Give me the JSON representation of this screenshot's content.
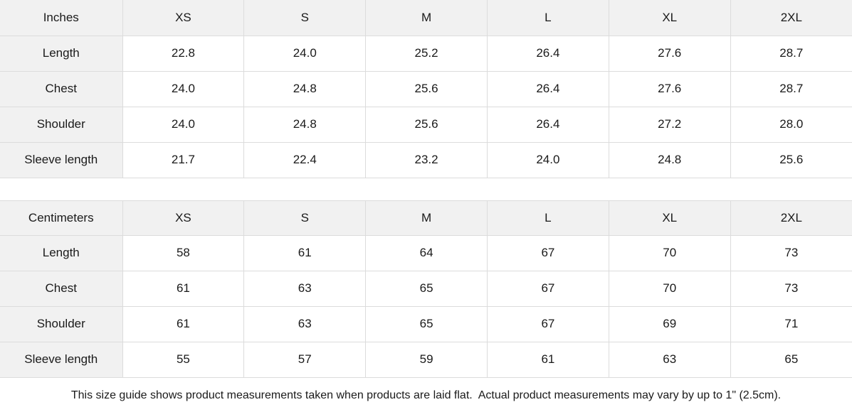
{
  "colors": {
    "header_bg": "#f1f1f1",
    "border": "#dcdcdc",
    "text": "#1a1a1a",
    "background": "#ffffff"
  },
  "size_tables": [
    {
      "unit_label": "Inches",
      "sizes": [
        "XS",
        "S",
        "M",
        "L",
        "XL",
        "2XL"
      ],
      "rows": [
        {
          "label": "Length",
          "values": [
            "22.8",
            "24.0",
            "25.2",
            "26.4",
            "27.6",
            "28.7"
          ]
        },
        {
          "label": "Chest",
          "values": [
            "24.0",
            "24.8",
            "25.6",
            "26.4",
            "27.6",
            "28.7"
          ]
        },
        {
          "label": "Shoulder",
          "values": [
            "24.0",
            "24.8",
            "25.6",
            "26.4",
            "27.2",
            "28.0"
          ]
        },
        {
          "label": "Sleeve length",
          "values": [
            "21.7",
            "22.4",
            "23.2",
            "24.0",
            "24.8",
            "25.6"
          ]
        }
      ]
    },
    {
      "unit_label": "Centimeters",
      "sizes": [
        "XS",
        "S",
        "M",
        "L",
        "XL",
        "2XL"
      ],
      "rows": [
        {
          "label": "Length",
          "values": [
            "58",
            "61",
            "64",
            "67",
            "70",
            "73"
          ]
        },
        {
          "label": "Chest",
          "values": [
            "61",
            "63",
            "65",
            "67",
            "70",
            "73"
          ]
        },
        {
          "label": "Shoulder",
          "values": [
            "61",
            "63",
            "65",
            "67",
            "69",
            "71"
          ]
        },
        {
          "label": "Sleeve length",
          "values": [
            "55",
            "57",
            "59",
            "61",
            "63",
            "65"
          ]
        }
      ]
    }
  ],
  "footer": {
    "note": "This size guide shows product measurements taken when products are laid flat.  Actual product measurements may vary by up to 1\" (2.5cm)."
  }
}
